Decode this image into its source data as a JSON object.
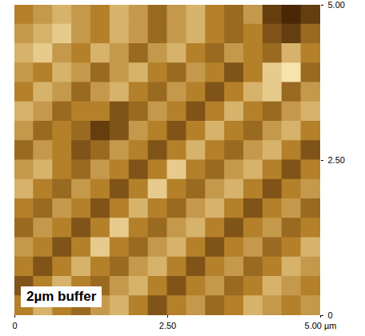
{
  "chart_data": {
    "type": "heatmap",
    "annotation": "2µm buffer",
    "xlim": [
      0,
      5
    ],
    "xticks": [
      0,
      {
        "value": 2.5,
        "label": "2.50"
      },
      {
        "value": 5,
        "label": "5.00 µm"
      }
    ],
    "ylim": [
      0,
      5
    ],
    "yticks": [
      0,
      {
        "value": 2.5,
        "label": "2.50"
      },
      {
        "value": 5,
        "label": "5.00"
      }
    ],
    "cells": [
      [
        5,
        6,
        7,
        6,
        5,
        7,
        6,
        4,
        6,
        7,
        5,
        4,
        6,
        2,
        1,
        2
      ],
      [
        6,
        7,
        8,
        6,
        5,
        7,
        6,
        4,
        6,
        7,
        5,
        4,
        5,
        3,
        2,
        4
      ],
      [
        7,
        8,
        6,
        5,
        7,
        6,
        4,
        6,
        7,
        5,
        4,
        6,
        5,
        4,
        7,
        5
      ],
      [
        6,
        5,
        7,
        6,
        4,
        6,
        7,
        5,
        4,
        6,
        5,
        3,
        5,
        8,
        9,
        4
      ],
      [
        5,
        7,
        6,
        4,
        6,
        7,
        5,
        4,
        6,
        5,
        3,
        5,
        7,
        8,
        4,
        6
      ],
      [
        7,
        6,
        4,
        5,
        5,
        3,
        4,
        6,
        5,
        3,
        5,
        7,
        5,
        4,
        6,
        7
      ],
      [
        6,
        4,
        5,
        4,
        2,
        3,
        6,
        5,
        3,
        5,
        7,
        5,
        4,
        6,
        7,
        5
      ],
      [
        4,
        6,
        5,
        3,
        4,
        6,
        5,
        3,
        5,
        7,
        5,
        4,
        6,
        7,
        5,
        3
      ],
      [
        6,
        7,
        5,
        4,
        6,
        5,
        3,
        5,
        8,
        5,
        4,
        6,
        7,
        5,
        3,
        5
      ],
      [
        7,
        5,
        4,
        6,
        5,
        3,
        5,
        8,
        5,
        4,
        6,
        7,
        5,
        3,
        5,
        6
      ],
      [
        5,
        4,
        6,
        5,
        3,
        5,
        7,
        5,
        4,
        6,
        7,
        5,
        3,
        5,
        6,
        4
      ],
      [
        4,
        6,
        5,
        3,
        5,
        8,
        5,
        4,
        6,
        7,
        5,
        3,
        5,
        6,
        4,
        5
      ],
      [
        6,
        5,
        3,
        5,
        8,
        5,
        4,
        6,
        7,
        5,
        3,
        5,
        6,
        4,
        5,
        7
      ],
      [
        5,
        3,
        5,
        7,
        5,
        4,
        6,
        7,
        5,
        3,
        5,
        6,
        4,
        5,
        7,
        6
      ],
      [
        3,
        5,
        7,
        5,
        4,
        6,
        7,
        5,
        3,
        5,
        6,
        4,
        5,
        7,
        6,
        5
      ],
      [
        5,
        7,
        5,
        4,
        6,
        7,
        5,
        3,
        5,
        6,
        4,
        5,
        7,
        6,
        5,
        6
      ]
    ]
  }
}
